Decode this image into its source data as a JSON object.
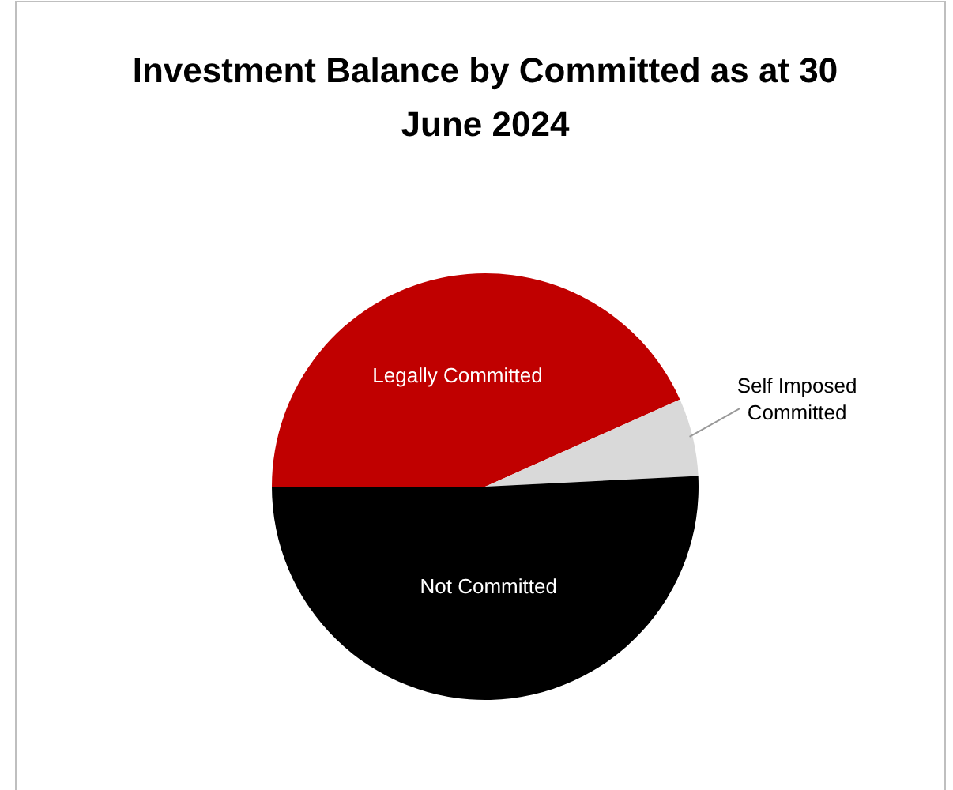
{
  "chart_data": {
    "type": "pie",
    "title": "Investment Balance by Committed as at 30 June 2024",
    "categories": [
      "Legally Committed",
      "Self Imposed Committed",
      "Not Committed"
    ],
    "values": [
      43.3,
      5.9,
      50.8
    ],
    "colors": [
      "#c00000",
      "#d9d9d9",
      "#000000"
    ],
    "legend": false
  }
}
